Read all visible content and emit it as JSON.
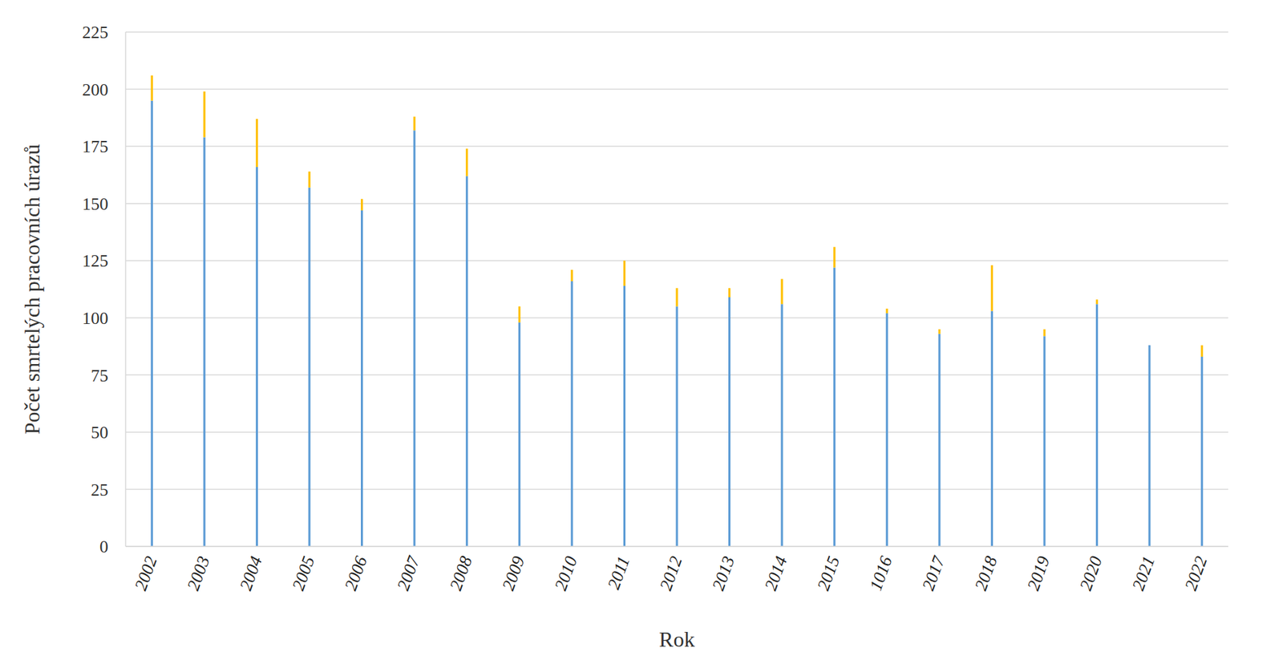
{
  "chart_data": {
    "type": "bar",
    "stacked": true,
    "grid": true,
    "x_label": "Rok",
    "y_label": "Počet smrtelých pracovních úrazů",
    "categories": [
      "2002",
      "2003",
      "2004",
      "2005",
      "2006",
      "2007",
      "2008",
      "2009",
      "2010",
      "2011",
      "2012",
      "2013",
      "2014",
      "2015",
      "1016",
      "2017",
      "2018",
      "2019",
      "2020",
      "2021",
      "2022"
    ],
    "series": [
      {
        "color": "#5b9bd5",
        "values": [
          195,
          179,
          166,
          157,
          147,
          182,
          162,
          98,
          116,
          114,
          105,
          109,
          106,
          122,
          102,
          93,
          103,
          92,
          106,
          88,
          83
        ]
      },
      {
        "color": "#ffc000",
        "values": [
          11,
          20,
          21,
          7,
          5,
          6,
          12,
          7,
          5,
          11,
          8,
          4,
          11,
          9,
          2,
          2,
          20,
          3,
          2,
          0,
          5
        ]
      }
    ],
    "ylim": [
      0,
      225
    ],
    "yticks": [
      0,
      25,
      50,
      75,
      100,
      125,
      150,
      175,
      200,
      225
    ]
  }
}
